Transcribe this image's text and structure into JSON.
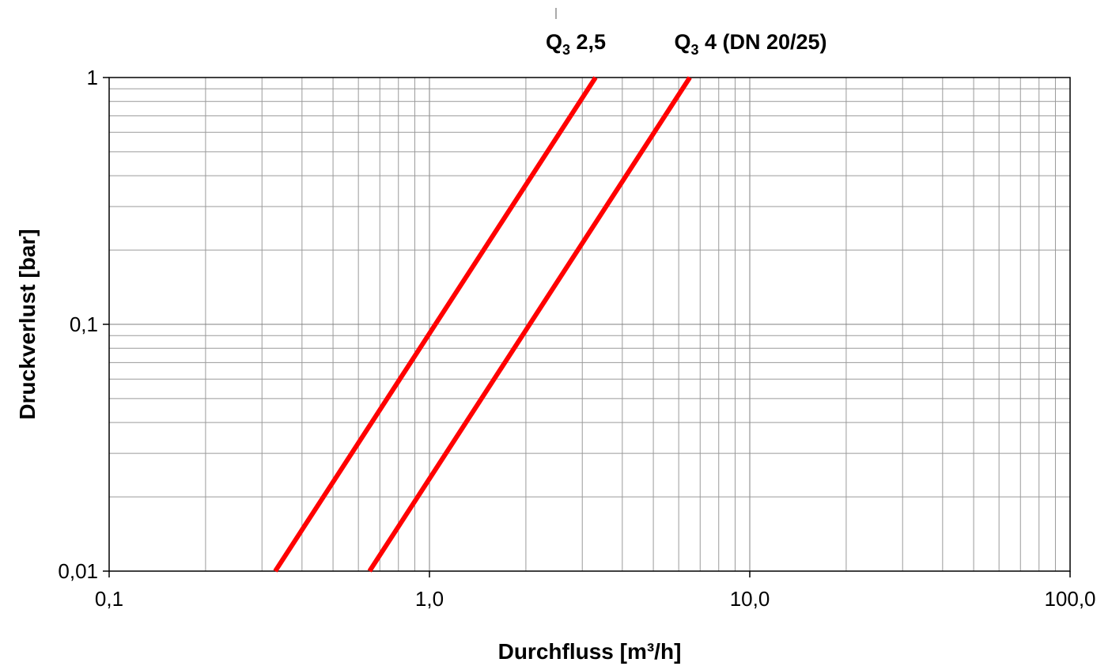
{
  "chart_data": {
    "type": "line",
    "xlabel": "Durchfluss [m³/h]",
    "ylabel": "Druckverlust [bar]",
    "xscale": "log",
    "yscale": "log",
    "xlim": [
      0.1,
      100
    ],
    "ylim": [
      0.01,
      1
    ],
    "grid": true,
    "x_ticks": [
      {
        "value": 0.1,
        "label": "0,1"
      },
      {
        "value": 1,
        "label": "1,0"
      },
      {
        "value": 10,
        "label": "10,0"
      },
      {
        "value": 100,
        "label": "100,0"
      }
    ],
    "y_ticks": [
      {
        "value": 0.01,
        "label": "0,01"
      },
      {
        "value": 0.1,
        "label": "0,1"
      },
      {
        "value": 1,
        "label": "1"
      }
    ],
    "series_color": "#ff0000",
    "series": [
      {
        "name": "Q3 2,5",
        "label_main": "Q",
        "label_sub": "3",
        "label_rest": " 2,5",
        "points": [
          {
            "x": 0.33,
            "y": 0.01
          },
          {
            "x": 3.3,
            "y": 1
          }
        ]
      },
      {
        "name": "Q3 4 (DN 20/25)",
        "label_main": "Q",
        "label_sub": "3",
        "label_rest": " 4 (DN 20/25)",
        "points": [
          {
            "x": 0.65,
            "y": 0.01
          },
          {
            "x": 6.5,
            "y": 1
          }
        ]
      }
    ]
  }
}
